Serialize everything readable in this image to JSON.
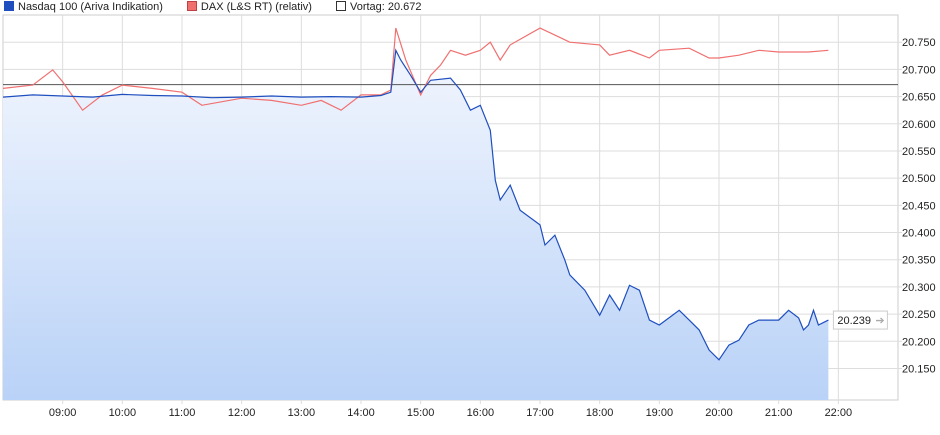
{
  "chart_data": {
    "type": "line",
    "legend": [
      {
        "label": "Nasdaq 100 (Ariva Indikation)",
        "color": "#1f4fbf"
      },
      {
        "label": "DAX (L&S RT) (relativ)",
        "color": "#f07070"
      },
      {
        "label": "Vortag: 20.672",
        "color": "#ffffff"
      }
    ],
    "legend_placement": "top-left",
    "reference_line": 20.672,
    "last_value_label": "20.239",
    "xlim": [
      "08:00",
      "23:00"
    ],
    "ylim": [
      20.092,
      20.8
    ],
    "x_ticks": [
      "09:00",
      "10:00",
      "11:00",
      "12:00",
      "13:00",
      "14:00",
      "15:00",
      "16:00",
      "17:00",
      "18:00",
      "19:00",
      "20:00",
      "21:00",
      "22:00"
    ],
    "y_ticks": [
      "20.150",
      "20.200",
      "20.250",
      "20.300",
      "20.350",
      "20.400",
      "20.450",
      "20.500",
      "20.550",
      "20.600",
      "20.650",
      "20.700",
      "20.750"
    ],
    "grid": true,
    "series": [
      {
        "name": "Nasdaq 100 (Ariva Indikation)",
        "color": "#1f4fbf",
        "fill": true,
        "x": [
          "08:00",
          "08:30",
          "09:00",
          "09:30",
          "10:00",
          "10:30",
          "11:00",
          "11:30",
          "12:00",
          "12:30",
          "13:00",
          "13:30",
          "14:00",
          "14:20",
          "14:30",
          "14:35",
          "14:40",
          "14:50",
          "15:00",
          "15:10",
          "15:30",
          "15:40",
          "15:50",
          "16:00",
          "16:10",
          "16:15",
          "16:20",
          "16:30",
          "16:40",
          "17:00",
          "17:05",
          "17:15",
          "17:25",
          "17:30",
          "17:45",
          "18:00",
          "18:10",
          "18:20",
          "18:30",
          "18:40",
          "18:50",
          "19:00",
          "19:20",
          "19:30",
          "19:40",
          "19:50",
          "20:00",
          "20:10",
          "20:20",
          "20:30",
          "20:40",
          "21:00",
          "21:10",
          "21:20",
          "21:25",
          "21:30",
          "21:35",
          "21:40",
          "21:50"
        ],
        "y": [
          20.649,
          20.653,
          20.651,
          20.649,
          20.654,
          20.652,
          20.651,
          20.648,
          20.649,
          20.651,
          20.649,
          20.65,
          20.649,
          20.652,
          20.658,
          20.735,
          20.717,
          20.689,
          20.658,
          20.68,
          20.684,
          20.662,
          20.625,
          20.634,
          20.588,
          20.496,
          20.46,
          20.487,
          20.441,
          20.414,
          20.377,
          20.395,
          20.349,
          20.322,
          20.294,
          20.248,
          20.285,
          20.257,
          20.303,
          20.294,
          20.239,
          20.23,
          20.257,
          20.239,
          20.221,
          20.184,
          20.166,
          20.193,
          20.202,
          20.23,
          20.239,
          20.239,
          20.257,
          20.243,
          20.221,
          20.23,
          20.257,
          20.23,
          20.239
        ]
      },
      {
        "name": "DAX (L&S RT) (relativ)",
        "color": "#f07070",
        "fill": false,
        "x": [
          "08:00",
          "08:30",
          "08:50",
          "09:00",
          "09:20",
          "09:40",
          "10:00",
          "10:30",
          "11:00",
          "11:20",
          "12:00",
          "12:30",
          "13:00",
          "13:20",
          "13:40",
          "14:00",
          "14:20",
          "14:30",
          "14:35",
          "14:45",
          "15:00",
          "15:10",
          "15:20",
          "15:30",
          "15:45",
          "16:00",
          "16:10",
          "16:20",
          "16:30",
          "17:00",
          "17:15",
          "17:30",
          "18:00",
          "18:10",
          "18:30",
          "18:50",
          "19:00",
          "19:30",
          "19:50",
          "20:00",
          "20:20",
          "20:40",
          "21:00",
          "21:30",
          "21:50"
        ],
        "y": [
          20.665,
          20.671,
          20.699,
          20.677,
          20.625,
          20.653,
          20.671,
          20.665,
          20.658,
          20.634,
          20.647,
          20.643,
          20.634,
          20.643,
          20.625,
          20.653,
          20.653,
          20.662,
          20.776,
          20.717,
          20.653,
          20.689,
          20.708,
          20.735,
          20.726,
          20.735,
          20.75,
          20.717,
          20.745,
          20.776,
          20.763,
          20.75,
          20.745,
          20.726,
          20.735,
          20.721,
          20.735,
          20.739,
          20.721,
          20.721,
          20.726,
          20.735,
          20.732,
          20.732,
          20.735
        ]
      }
    ]
  }
}
